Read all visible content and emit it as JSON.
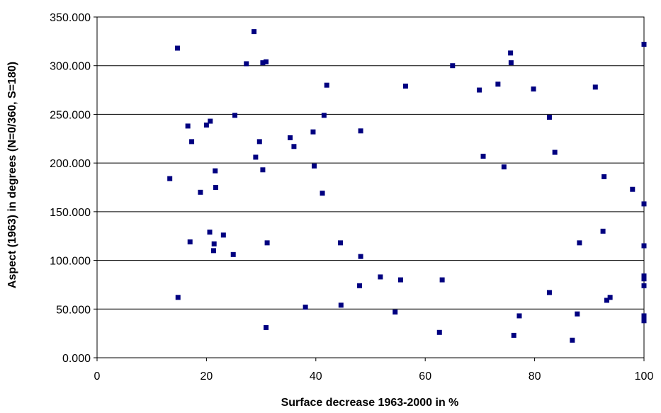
{
  "chart_data": {
    "type": "scatter",
    "title": "",
    "xlabel": "Surface decrease 1963-2000 in %",
    "ylabel": "Aspect (1963) in degrees (N=0/360, S=180)",
    "xlim": [
      0,
      100
    ],
    "ylim": [
      0,
      350
    ],
    "x_ticks": [
      "0",
      "20",
      "40",
      "60",
      "80",
      "100"
    ],
    "y_ticks": [
      "0.000",
      "50.000",
      "100.000",
      "150.000",
      "200.000",
      "250.000",
      "300.000",
      "350.000"
    ],
    "grid": "horizontal",
    "legend": "none",
    "marker_color": "#000080",
    "points": [
      [
        13.3,
        184
      ],
      [
        14.7,
        318
      ],
      [
        14.8,
        62
      ],
      [
        16.6,
        238
      ],
      [
        17.0,
        119
      ],
      [
        17.3,
        222
      ],
      [
        18.9,
        170
      ],
      [
        20.0,
        239
      ],
      [
        20.6,
        129
      ],
      [
        20.7,
        243
      ],
      [
        21.3,
        110
      ],
      [
        21.4,
        117
      ],
      [
        21.6,
        192
      ],
      [
        21.7,
        175
      ],
      [
        23.1,
        126
      ],
      [
        24.9,
        106
      ],
      [
        25.2,
        249
      ],
      [
        27.3,
        302
      ],
      [
        28.7,
        335
      ],
      [
        29.0,
        206
      ],
      [
        29.7,
        222
      ],
      [
        30.3,
        303
      ],
      [
        30.3,
        193
      ],
      [
        30.9,
        304
      ],
      [
        30.9,
        31
      ],
      [
        31.1,
        118
      ],
      [
        35.3,
        226
      ],
      [
        36.0,
        217
      ],
      [
        38.1,
        52
      ],
      [
        39.5,
        232
      ],
      [
        39.7,
        197
      ],
      [
        41.2,
        169
      ],
      [
        41.5,
        249
      ],
      [
        42.0,
        280
      ],
      [
        44.5,
        118
      ],
      [
        44.6,
        54
      ],
      [
        48.0,
        74
      ],
      [
        48.2,
        104
      ],
      [
        48.2,
        233
      ],
      [
        51.8,
        83
      ],
      [
        54.5,
        47
      ],
      [
        55.5,
        80
      ],
      [
        56.4,
        279
      ],
      [
        62.6,
        26
      ],
      [
        63.1,
        80
      ],
      [
        65.0,
        300
      ],
      [
        69.9,
        275
      ],
      [
        70.6,
        207
      ],
      [
        73.3,
        281
      ],
      [
        74.4,
        196
      ],
      [
        75.6,
        313
      ],
      [
        75.7,
        303
      ],
      [
        76.2,
        23
      ],
      [
        77.2,
        43
      ],
      [
        79.8,
        276
      ],
      [
        82.7,
        67
      ],
      [
        82.7,
        247
      ],
      [
        83.7,
        211
      ],
      [
        86.9,
        18
      ],
      [
        87.8,
        45
      ],
      [
        88.2,
        118
      ],
      [
        91.1,
        278
      ],
      [
        92.5,
        130
      ],
      [
        92.7,
        186
      ],
      [
        93.2,
        59
      ],
      [
        93.8,
        62
      ],
      [
        97.9,
        173
      ],
      [
        100,
        322
      ],
      [
        100,
        158
      ],
      [
        100,
        115
      ],
      [
        100,
        84
      ],
      [
        100,
        81
      ],
      [
        100,
        74
      ],
      [
        100,
        43
      ],
      [
        100,
        41
      ],
      [
        100,
        38
      ]
    ]
  }
}
